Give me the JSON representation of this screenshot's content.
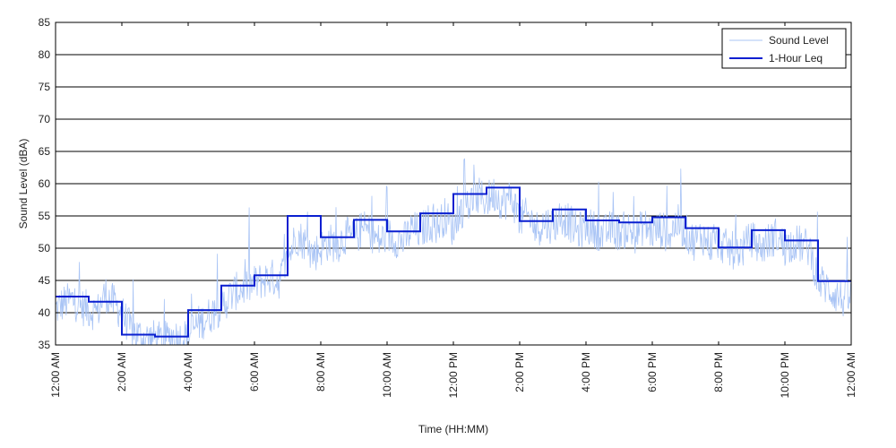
{
  "chart_data": {
    "type": "line",
    "title": "",
    "xlabel": "Time (HH:MM)",
    "ylabel": "Sound Level (dBA)",
    "ylim": [
      35,
      85
    ],
    "yticks": [
      35,
      40,
      45,
      50,
      55,
      60,
      65,
      70,
      75,
      80,
      85
    ],
    "xlim_hours": [
      0,
      24
    ],
    "xticks": [
      {
        "hour": 0,
        "label": "12:00 AM"
      },
      {
        "hour": 2,
        "label": "2:00 AM"
      },
      {
        "hour": 4,
        "label": "4:00 AM"
      },
      {
        "hour": 6,
        "label": "6:00 AM"
      },
      {
        "hour": 8,
        "label": "8:00 AM"
      },
      {
        "hour": 10,
        "label": "10:00 AM"
      },
      {
        "hour": 12,
        "label": "12:00 PM"
      },
      {
        "hour": 14,
        "label": "2:00 PM"
      },
      {
        "hour": 16,
        "label": "4:00 PM"
      },
      {
        "hour": 18,
        "label": "6:00 PM"
      },
      {
        "hour": 20,
        "label": "8:00 PM"
      },
      {
        "hour": 22,
        "label": "10:00 PM"
      },
      {
        "hour": 24,
        "label": "12:00 AM"
      }
    ],
    "grid": "horizontal",
    "legend_position": "top-right",
    "series": [
      {
        "name": "Sound Level",
        "color": "#a9c4f5",
        "style": "thin-noisy",
        "hours": [
          0,
          0.25,
          0.5,
          0.75,
          1,
          1.25,
          1.5,
          1.75,
          2,
          2.25,
          2.5,
          2.75,
          3,
          3.25,
          3.5,
          3.75,
          4,
          4.25,
          4.5,
          4.75,
          5,
          5.25,
          5.5,
          5.75,
          6,
          6.25,
          6.5,
          6.75,
          7,
          7.25,
          7.5,
          7.75,
          8,
          8.25,
          8.5,
          8.75,
          9,
          9.25,
          9.5,
          9.75,
          10,
          10.25,
          10.5,
          10.75,
          11,
          11.25,
          11.5,
          11.75,
          12,
          12.25,
          12.5,
          12.75,
          13,
          13.25,
          13.5,
          13.75,
          14,
          14.25,
          14.5,
          14.75,
          15,
          15.25,
          15.5,
          15.75,
          16,
          16.25,
          16.5,
          16.75,
          17,
          17.25,
          17.5,
          17.75,
          18,
          18.25,
          18.5,
          18.75,
          19,
          19.25,
          19.5,
          19.75,
          20,
          20.25,
          20.5,
          20.75,
          21,
          21.25,
          21.5,
          21.75,
          22,
          22.25,
          22.5,
          22.75,
          23,
          23.25,
          23.5,
          23.75,
          24
        ],
        "values": [
          40.5,
          41.5,
          42,
          41,
          40.5,
          40,
          43,
          41.5,
          40,
          37.5,
          36.5,
          36,
          36,
          35.5,
          36.5,
          36,
          36.5,
          38,
          39,
          40,
          41,
          42.5,
          43.5,
          44,
          44.5,
          45,
          45.5,
          45,
          48,
          52,
          51,
          49,
          50,
          51,
          50.5,
          52,
          51.5,
          53,
          52.5,
          51,
          52,
          51.5,
          51,
          53,
          52.5,
          54,
          53.5,
          55,
          53,
          56,
          57,
          58,
          57.5,
          58.5,
          57,
          58,
          54.5,
          55,
          53,
          54,
          53.5,
          55,
          54,
          52.5,
          53.5,
          53,
          52,
          53,
          52.5,
          53,
          52,
          53.5,
          52.5,
          53,
          52,
          54,
          52.5,
          51,
          52,
          50.5,
          51,
          50,
          49.5,
          50,
          51.5,
          50,
          51,
          52,
          50,
          51,
          50.5,
          50,
          45,
          44,
          43,
          42,
          42.5
        ]
      },
      {
        "name": "1-Hour Leq",
        "color": "#0a1fd0",
        "style": "step",
        "hour_starts": [
          0,
          1,
          2,
          3,
          4,
          5,
          6,
          7,
          8,
          9,
          10,
          11,
          12,
          13,
          14,
          15,
          16,
          17,
          18,
          19,
          20,
          21,
          22,
          23
        ],
        "values": [
          42.5,
          41.7,
          36.6,
          36.3,
          40.4,
          44.2,
          45.8,
          55.0,
          51.7,
          54.4,
          52.6,
          55.4,
          58.4,
          59.4,
          54.2,
          56.0,
          54.3,
          54.0,
          54.8,
          53.1,
          50.1,
          52.8,
          51.2,
          44.9
        ]
      }
    ]
  }
}
